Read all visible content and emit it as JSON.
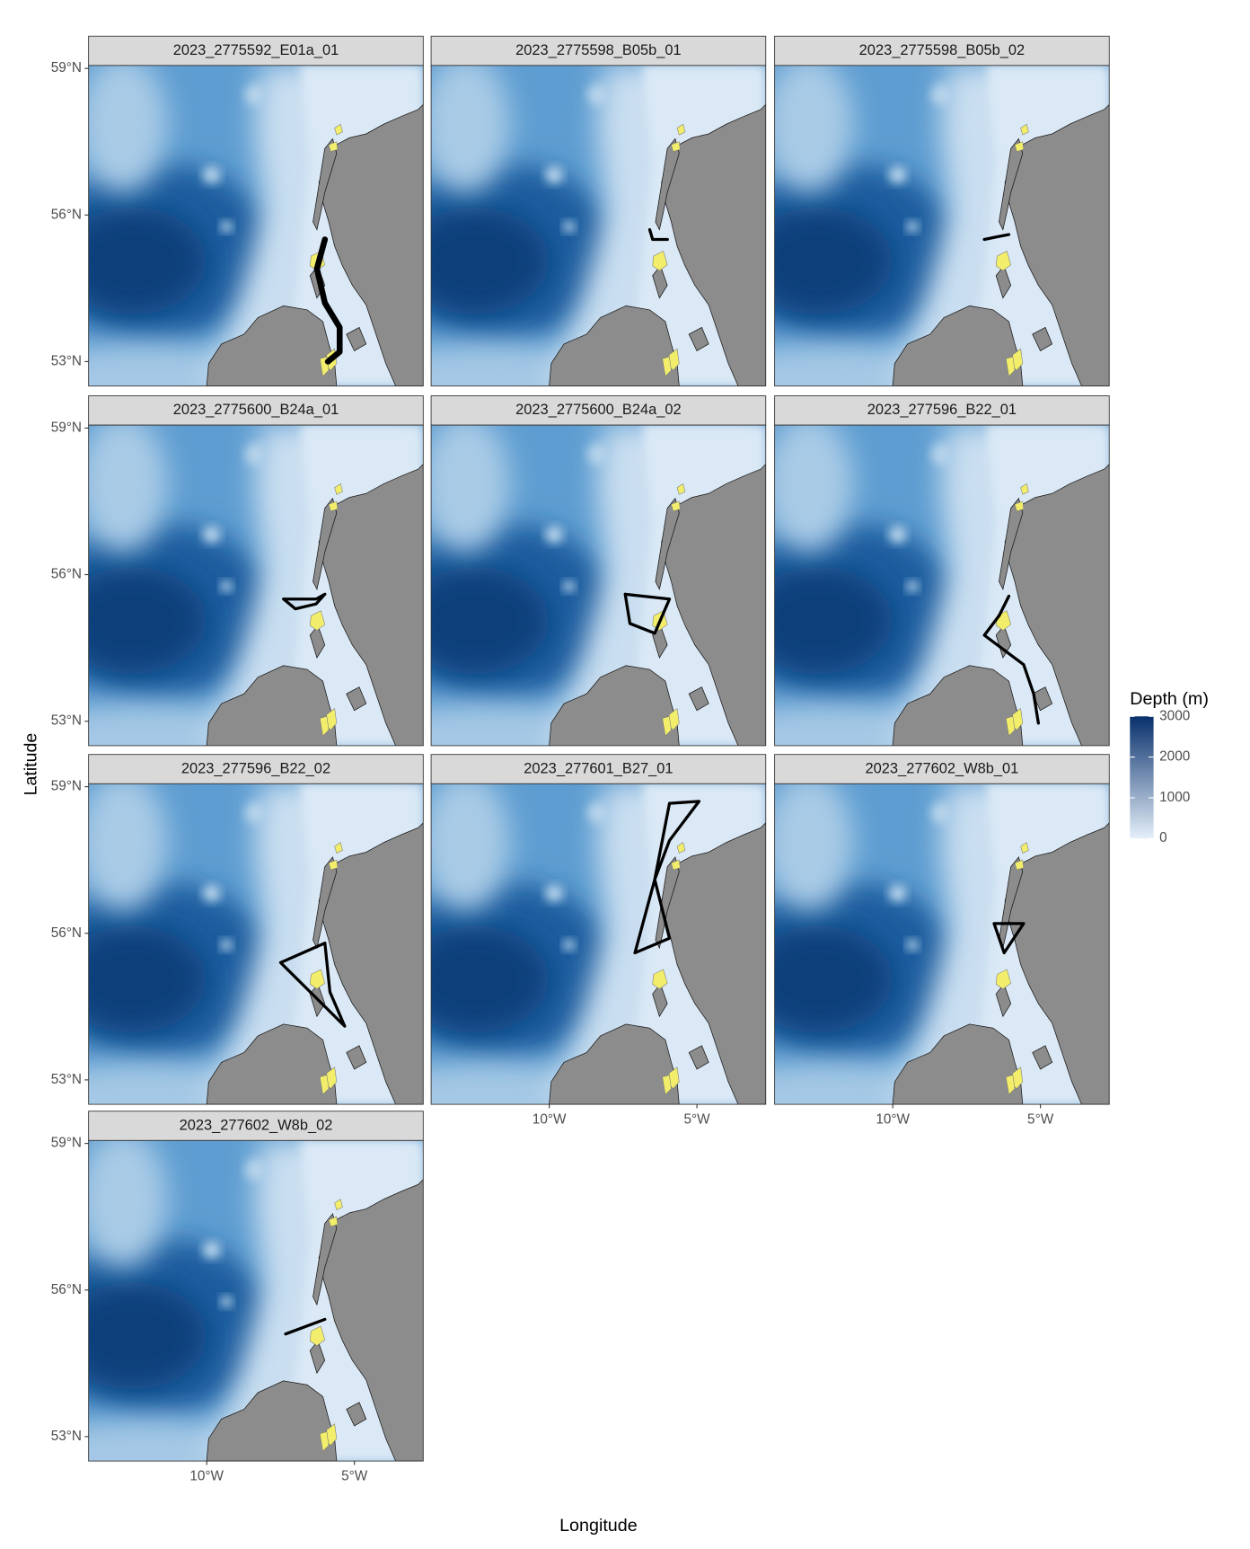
{
  "chart_data": {
    "type": "map",
    "xlabel": "Longitude",
    "ylabel": "Latitude",
    "xlim": [
      -14,
      -2.67
    ],
    "ylim": [
      52.5,
      59.06
    ],
    "xticks": [
      {
        "value": -10,
        "label": "10°W"
      },
      {
        "value": -5,
        "label": "5°W"
      }
    ],
    "yticks": [
      {
        "value": 53,
        "label": "53°N"
      },
      {
        "value": 56,
        "label": "56°N"
      },
      {
        "value": 59,
        "label": "59°N"
      }
    ],
    "track_color": "#000000",
    "legend": {
      "title": "Depth (m)",
      "lim": [
        0,
        3000
      ],
      "ticks": [
        0,
        1000,
        2000,
        3000
      ],
      "colors": [
        "#e4effa",
        "#08306b"
      ]
    },
    "facets": [
      {
        "title": "2023_2775592_E01a_01",
        "lon": [
          -6.0,
          -6.27,
          -6.0,
          -5.5,
          -5.5,
          -5.9
        ],
        "lat": [
          55.5,
          54.9,
          54.2,
          53.7,
          53.2,
          53.0
        ]
      },
      {
        "title": "2023_2775598_B05b_01",
        "lon": [
          -6.6,
          -6.5,
          -6.0
        ],
        "lat": [
          55.7,
          55.5,
          55.5
        ]
      },
      {
        "title": "2023_2775598_B05b_02",
        "lon": [
          -6.9,
          -6.5,
          -6.07
        ],
        "lat": [
          55.5,
          55.55,
          55.6
        ]
      },
      {
        "title": "2023_2775600_B24a_01",
        "lon": [
          -7.4,
          -7.0,
          -6.3,
          -6.0,
          -6.3,
          -7.4
        ],
        "lat": [
          55.5,
          55.3,
          55.4,
          55.6,
          55.5,
          55.5
        ]
      },
      {
        "title": "2023_2775600_B24a_02",
        "lon": [
          -7.43,
          -7.27,
          -6.43,
          -5.93,
          -7.43
        ],
        "lat": [
          55.6,
          55.0,
          54.8,
          55.5,
          55.6
        ]
      },
      {
        "title": "2023_277596_B22_01",
        "lon": [
          -6.07,
          -6.4,
          -6.9,
          -5.57,
          -5.23,
          -5.07
        ],
        "lat": [
          55.56,
          55.16,
          54.76,
          54.16,
          53.56,
          52.96
        ]
      },
      {
        "title": "2023_277596_B22_02",
        "lon": [
          -7.5,
          -6.0,
          -5.83,
          -5.33,
          -7.5
        ],
        "lat": [
          55.4,
          55.8,
          54.8,
          54.1,
          55.4
        ]
      },
      {
        "title": "2023_277601_B27_01",
        "lon": [
          -5.93,
          -4.93,
          -5.93,
          -6.43,
          -7.1,
          -5.93,
          -6.43,
          -5.93
        ],
        "lat": [
          58.66,
          58.7,
          57.9,
          57.1,
          55.6,
          55.9,
          57.1,
          58.66
        ]
      },
      {
        "title": "2023_277602_W8b_01",
        "lon": [
          -6.57,
          -5.57,
          -6.23,
          -6.57
        ],
        "lat": [
          56.2,
          56.2,
          55.6,
          56.2
        ]
      },
      {
        "title": "2023_277602_W8b_02",
        "lon": [
          -7.33,
          -6.0
        ],
        "lat": [
          55.1,
          55.4
        ]
      }
    ]
  }
}
